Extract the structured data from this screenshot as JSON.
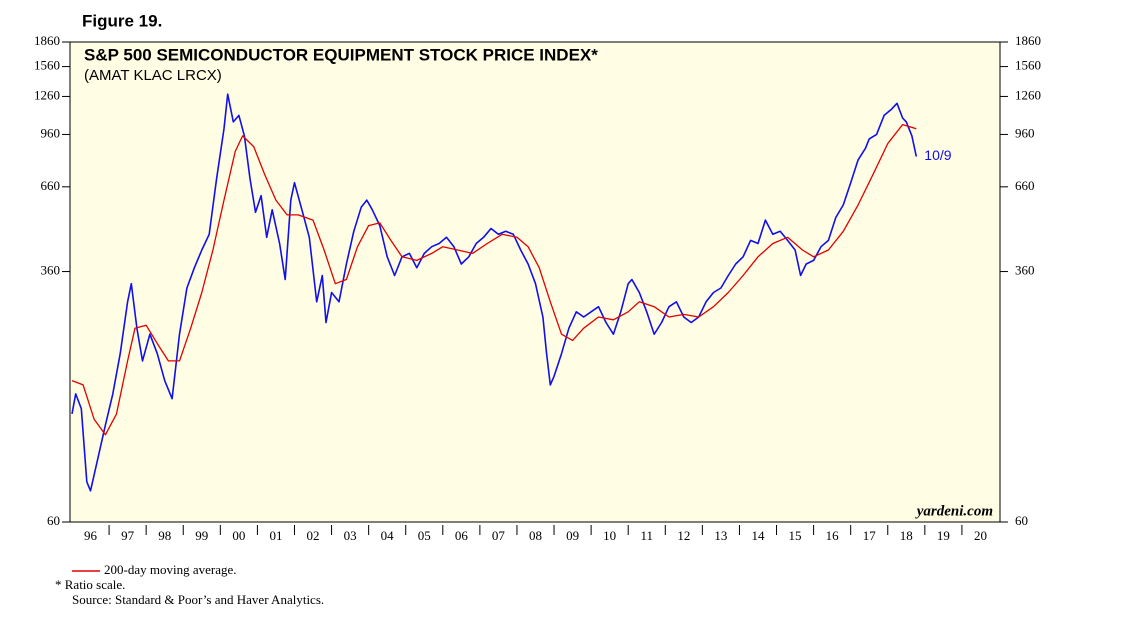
{
  "chart_data": {
    "type": "line",
    "figure_label": "Figure 19.",
    "title": "S&P 500 SEMICONDUCTOR EQUIPMENT STOCK PRICE INDEX*",
    "subtitle": "(AMAT KLAC LRCX)",
    "annotation": "10/9",
    "watermark": "yardeni.com",
    "notes": [
      "*  Ratio scale.",
      "Source: Standard & Poor’s and Haver Analytics."
    ],
    "log_scale": true,
    "ylim": [
      60,
      1860
    ],
    "yticks": [
      60,
      360,
      660,
      960,
      1260,
      1560,
      1860
    ],
    "xlim": [
      1996,
      2021
    ],
    "xticks": [
      {
        "value": 1996,
        "label": "96"
      },
      {
        "value": 1997,
        "label": "97"
      },
      {
        "value": 1998,
        "label": "98"
      },
      {
        "value": 1999,
        "label": "99"
      },
      {
        "value": 2000,
        "label": "00"
      },
      {
        "value": 2001,
        "label": "01"
      },
      {
        "value": 2002,
        "label": "02"
      },
      {
        "value": 2003,
        "label": "03"
      },
      {
        "value": 2004,
        "label": "04"
      },
      {
        "value": 2005,
        "label": "05"
      },
      {
        "value": 2006,
        "label": "06"
      },
      {
        "value": 2007,
        "label": "07"
      },
      {
        "value": 2008,
        "label": "08"
      },
      {
        "value": 2009,
        "label": "09"
      },
      {
        "value": 2010,
        "label": "10"
      },
      {
        "value": 2011,
        "label": "11"
      },
      {
        "value": 2012,
        "label": "12"
      },
      {
        "value": 2013,
        "label": "13"
      },
      {
        "value": 2014,
        "label": "14"
      },
      {
        "value": 2015,
        "label": "15"
      },
      {
        "value": 2016,
        "label": "16"
      },
      {
        "value": 2017,
        "label": "17"
      },
      {
        "value": 2018,
        "label": "18"
      },
      {
        "value": 2019,
        "label": "19"
      },
      {
        "value": 2020,
        "label": "20"
      }
    ],
    "series": [
      {
        "color": "#1010ee",
        "x": [
          1996.0,
          1996.1,
          1996.25,
          1996.4,
          1996.5,
          1996.7,
          1996.9,
          1997.1,
          1997.3,
          1997.5,
          1997.6,
          1997.75,
          1997.9,
          1998.1,
          1998.3,
          1998.5,
          1998.7,
          1998.9,
          1999.1,
          1999.3,
          1999.5,
          1999.7,
          1999.9,
          2000.1,
          2000.2,
          2000.35,
          2000.5,
          2000.65,
          2000.8,
          2000.95,
          2001.1,
          2001.25,
          2001.4,
          2001.6,
          2001.75,
          2001.9,
          2002.0,
          2002.2,
          2002.4,
          2002.6,
          2002.75,
          2002.85,
          2003.0,
          2003.2,
          2003.4,
          2003.6,
          2003.8,
          2003.95,
          2004.1,
          2004.3,
          2004.5,
          2004.7,
          2004.9,
          2005.1,
          2005.3,
          2005.5,
          2005.7,
          2005.9,
          2006.1,
          2006.3,
          2006.5,
          2006.7,
          2006.9,
          2007.1,
          2007.3,
          2007.5,
          2007.7,
          2007.9,
          2008.1,
          2008.3,
          2008.5,
          2008.7,
          2008.8,
          2008.9,
          2009.0,
          2009.2,
          2009.4,
          2009.6,
          2009.8,
          2010.0,
          2010.2,
          2010.4,
          2010.6,
          2010.8,
          2011.0,
          2011.1,
          2011.3,
          2011.5,
          2011.7,
          2011.9,
          2012.1,
          2012.3,
          2012.5,
          2012.7,
          2012.9,
          2013.1,
          2013.3,
          2013.5,
          2013.7,
          2013.9,
          2014.1,
          2014.3,
          2014.5,
          2014.7,
          2014.9,
          2015.1,
          2015.3,
          2015.5,
          2015.65,
          2015.8,
          2016.0,
          2016.2,
          2016.4,
          2016.6,
          2016.8,
          2017.0,
          2017.2,
          2017.4,
          2017.5,
          2017.7,
          2017.9,
          2018.1,
          2018.25,
          2018.4,
          2018.5,
          2018.65,
          2018.77
        ],
        "values": [
          130,
          150,
          135,
          80,
          75,
          95,
          120,
          150,
          200,
          290,
          330,
          240,
          190,
          230,
          200,
          165,
          145,
          230,
          320,
          370,
          420,
          470,
          700,
          1000,
          1280,
          1050,
          1100,
          950,
          700,
          550,
          620,
          460,
          560,
          440,
          340,
          600,
          680,
          560,
          460,
          290,
          350,
          250,
          310,
          290,
          380,
          480,
          570,
          600,
          560,
          500,
          400,
          350,
          400,
          410,
          370,
          410,
          430,
          440,
          460,
          430,
          380,
          400,
          440,
          460,
          490,
          470,
          480,
          470,
          420,
          380,
          330,
          260,
          200,
          160,
          170,
          200,
          240,
          270,
          260,
          270,
          280,
          250,
          230,
          270,
          330,
          340,
          310,
          270,
          230,
          250,
          280,
          290,
          260,
          250,
          260,
          290,
          310,
          320,
          350,
          380,
          400,
          450,
          440,
          520,
          470,
          480,
          450,
          420,
          350,
          380,
          390,
          430,
          450,
          530,
          580,
          680,
          800,
          870,
          930,
          960,
          1100,
          1150,
          1200,
          1080,
          1050,
          950,
          820
        ]
      },
      {
        "name": "200-day moving average.",
        "color": "#e00000",
        "x": [
          1996.0,
          1996.3,
          1996.6,
          1996.9,
          1997.2,
          1997.5,
          1997.7,
          1998.0,
          1998.3,
          1998.6,
          1998.9,
          1999.2,
          1999.5,
          1999.8,
          2000.1,
          2000.4,
          2000.6,
          2000.9,
          2001.2,
          2001.5,
          2001.8,
          2002.1,
          2002.5,
          2002.8,
          2003.1,
          2003.4,
          2003.7,
          2004.0,
          2004.3,
          2004.6,
          2004.9,
          2005.3,
          2005.7,
          2006.0,
          2006.4,
          2006.8,
          2007.2,
          2007.6,
          2008.0,
          2008.3,
          2008.6,
          2008.9,
          2009.2,
          2009.5,
          2009.8,
          2010.2,
          2010.6,
          2011.0,
          2011.3,
          2011.7,
          2012.1,
          2012.5,
          2012.9,
          2013.3,
          2013.7,
          2014.1,
          2014.5,
          2014.9,
          2015.3,
          2015.7,
          2016.0,
          2016.4,
          2016.8,
          2017.2,
          2017.6,
          2018.0,
          2018.4,
          2018.77
        ],
        "values": [
          165,
          160,
          125,
          112,
          130,
          190,
          240,
          245,
          215,
          190,
          190,
          240,
          310,
          420,
          600,
          850,
          950,
          880,
          720,
          600,
          540,
          540,
          520,
          420,
          330,
          340,
          430,
          500,
          510,
          450,
          400,
          390,
          410,
          430,
          420,
          410,
          440,
          470,
          460,
          430,
          370,
          290,
          230,
          220,
          240,
          260,
          255,
          270,
          290,
          280,
          260,
          265,
          260,
          280,
          310,
          350,
          400,
          440,
          460,
          420,
          400,
          420,
          480,
          580,
          720,
          900,
          1030,
          1000
        ]
      }
    ]
  }
}
